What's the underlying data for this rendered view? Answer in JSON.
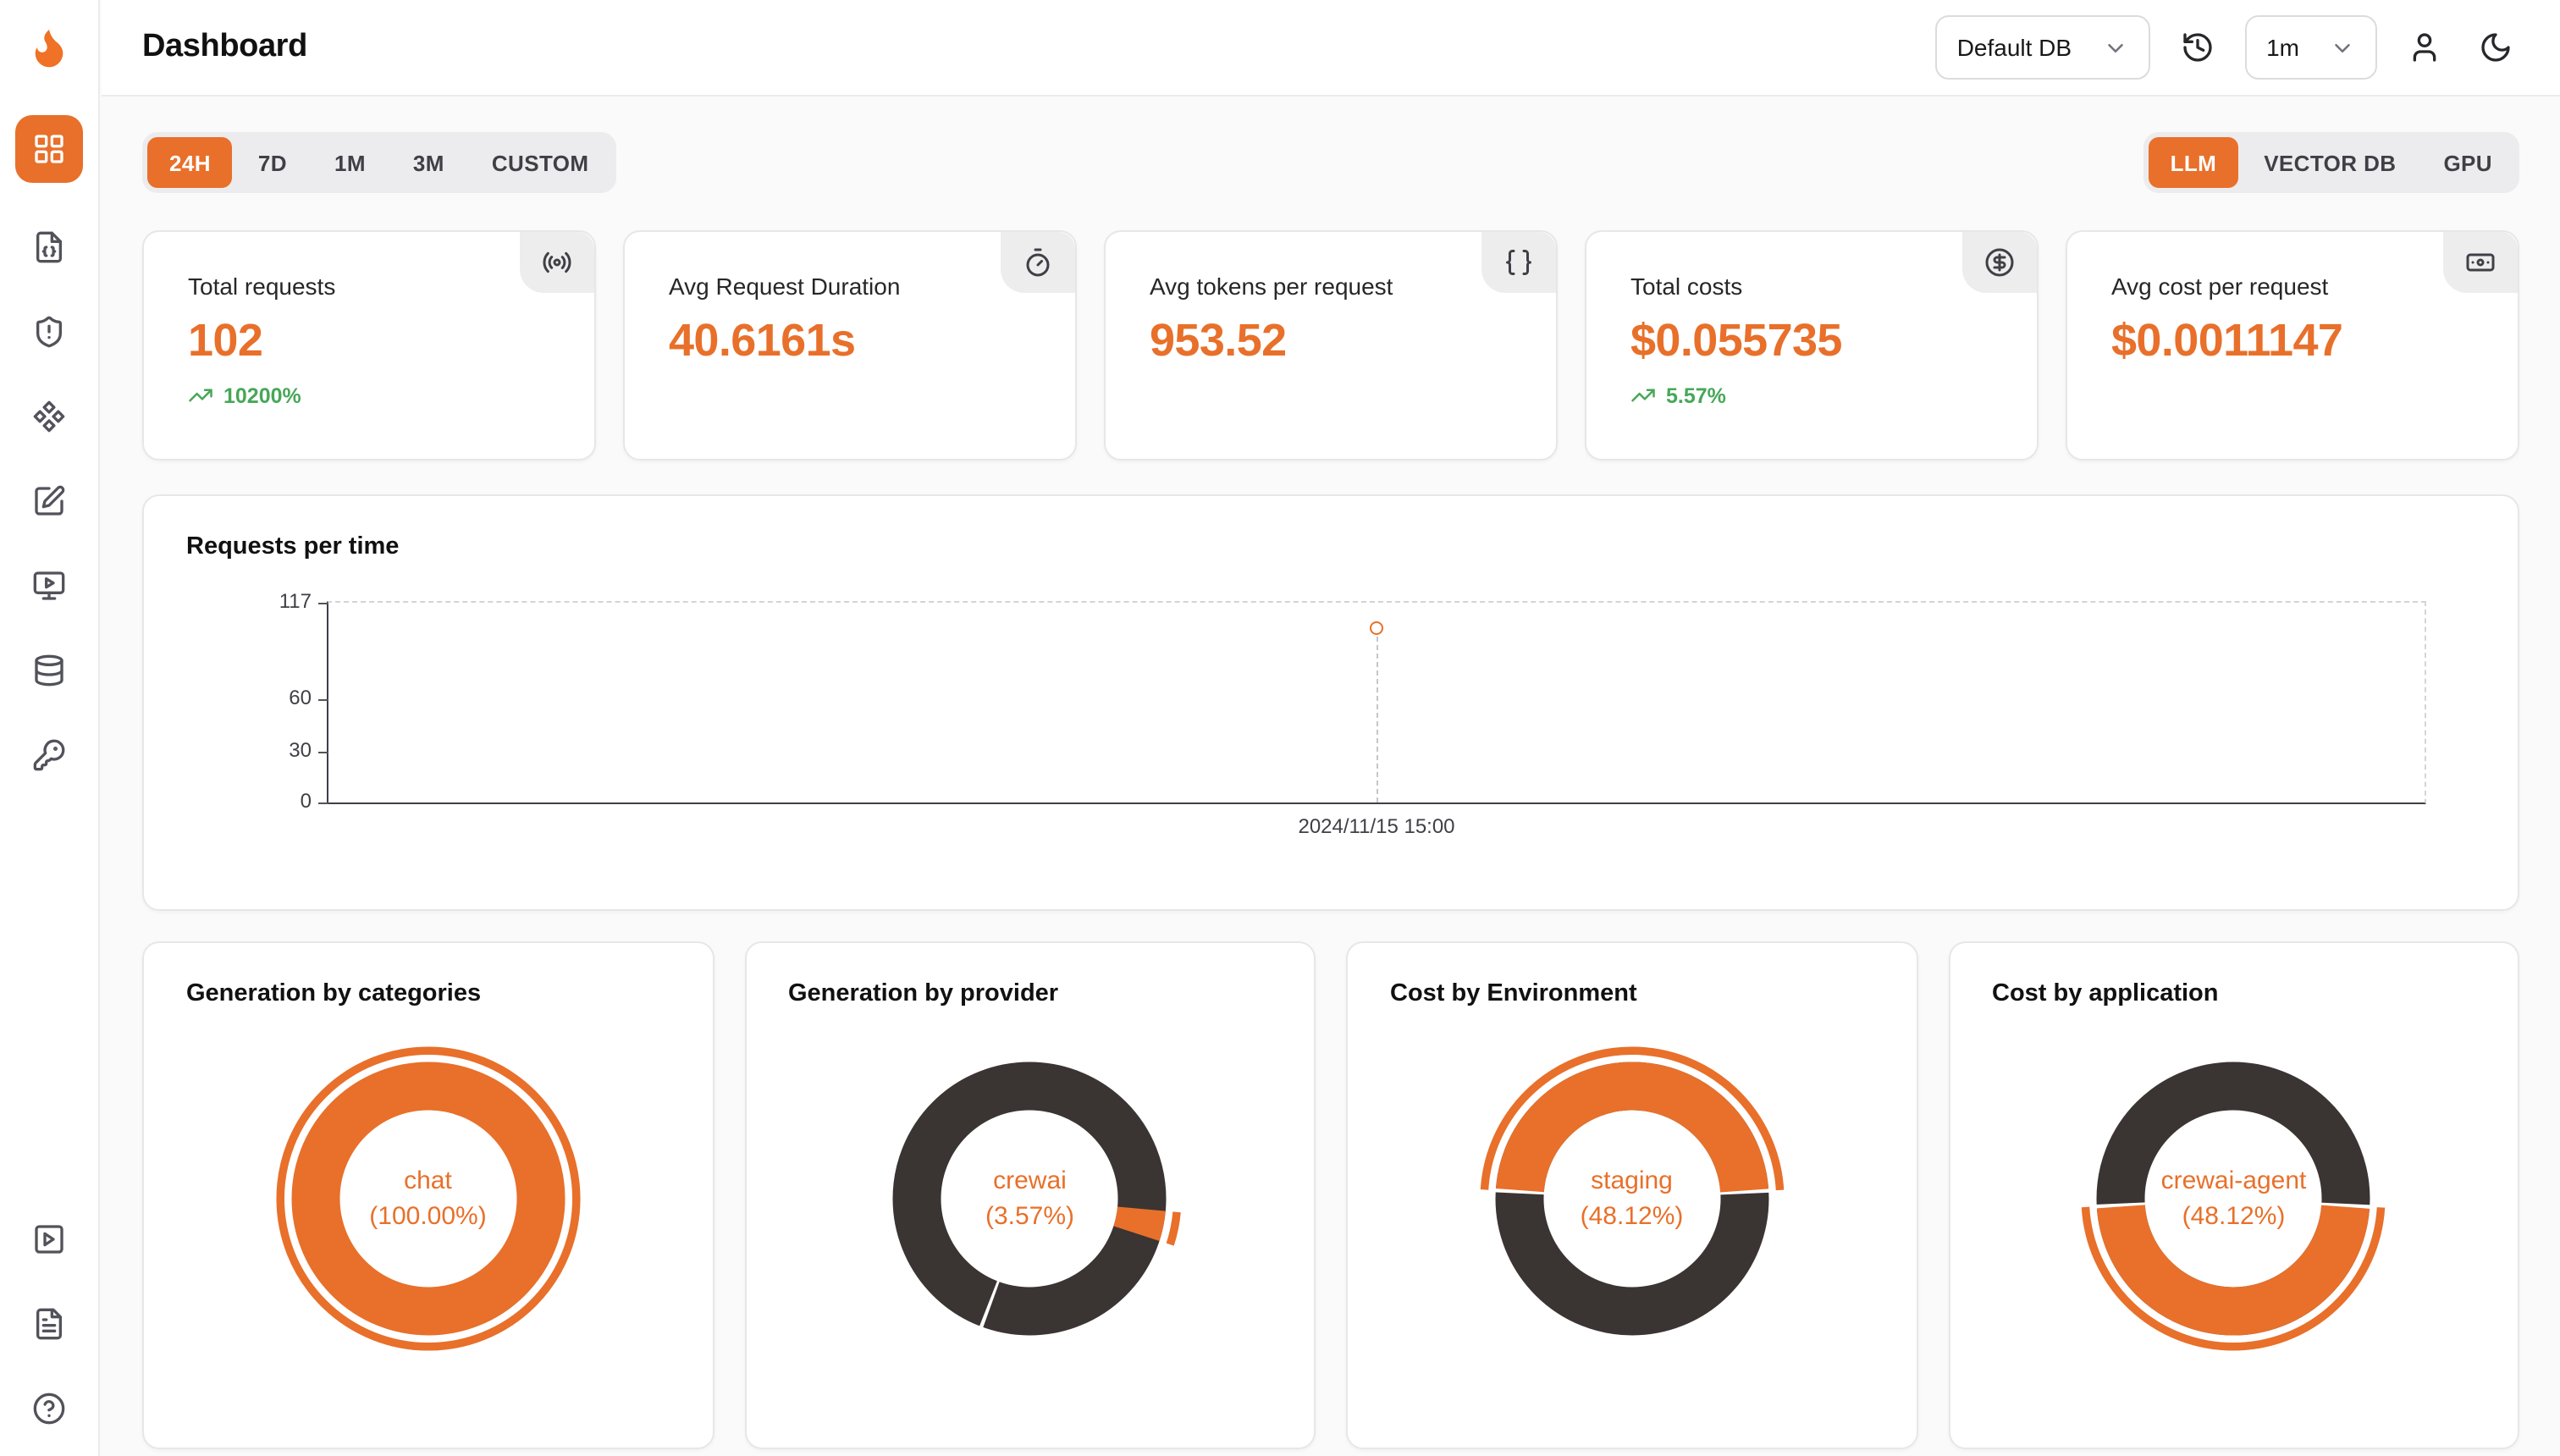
{
  "colors": {
    "accent": "#e8702a",
    "dark": "#3a3432",
    "green": "#47a758"
  },
  "header": {
    "title": "Dashboard",
    "db_select": {
      "value": "Default DB"
    },
    "interval_select": {
      "value": "1m"
    },
    "icons": [
      "history-icon",
      "user-icon",
      "moon-icon"
    ]
  },
  "sidebar": {
    "items": [
      {
        "icon": "dashboard-grid-icon",
        "active": true
      },
      {
        "icon": "file-json-icon"
      },
      {
        "icon": "shield-alert-icon"
      },
      {
        "icon": "nodes-icon"
      },
      {
        "icon": "form-edit-icon"
      },
      {
        "icon": "monitor-play-icon"
      },
      {
        "icon": "database-icon"
      },
      {
        "icon": "key-icon"
      }
    ],
    "bottom_items": [
      {
        "icon": "play-square-icon"
      },
      {
        "icon": "docs-icon"
      },
      {
        "icon": "help-icon"
      }
    ]
  },
  "time_tabs": {
    "items": [
      "24H",
      "7D",
      "1M",
      "3M",
      "CUSTOM"
    ],
    "active": "24H"
  },
  "source_tabs": {
    "items": [
      "LLM",
      "VECTOR DB",
      "GPU"
    ],
    "active": "LLM"
  },
  "stats": [
    {
      "label": "Total requests",
      "value": "102",
      "delta": "10200%",
      "icon": "radio-icon"
    },
    {
      "label": "Avg Request Duration",
      "value": "40.6161s",
      "icon": "timer-icon"
    },
    {
      "label": "Avg tokens per request",
      "value": "953.52",
      "icon": "braces-icon"
    },
    {
      "label": "Total costs",
      "value": "$0.055735",
      "delta": "5.57%",
      "icon": "dollar-icon"
    },
    {
      "label": "Avg cost per request",
      "value": "$0.0011147",
      "icon": "card-icon"
    }
  ],
  "chart_data": [
    {
      "type": "line",
      "title": "Requests per time",
      "x": [
        "2024/11/15 15:00"
      ],
      "series": [
        {
          "name": "requests",
          "values": [
            102
          ]
        }
      ],
      "ylim": [
        0,
        117
      ],
      "yticks": [
        0,
        30,
        60,
        117
      ],
      "point_x_frac": 0.5,
      "grid": "dashed-border",
      "legend": "none"
    },
    {
      "type": "pie",
      "title": "Generation by categories",
      "slices": [
        {
          "label": "chat",
          "pct": 100.0
        }
      ],
      "center_label": "chat",
      "center_pct": "(100.00%)",
      "base": "accent",
      "arc": null,
      "dividers": [],
      "outer": {
        "from": 0,
        "to": 1
      }
    },
    {
      "type": "pie",
      "title": "Generation by provider",
      "slices": [
        {
          "label": "crewai",
          "pct": 3.57
        },
        {
          "label": "other",
          "pct": 96.43
        }
      ],
      "center_label": "crewai",
      "center_pct": "(3.57%)",
      "base": "dark",
      "arc": {
        "from": 0.2643,
        "to": 0.3
      },
      "dividers": [
        0.557
      ],
      "outer": {
        "from": 0.2643,
        "to": 0.3
      }
    },
    {
      "type": "pie",
      "title": "Cost by Environment",
      "slices": [
        {
          "label": "staging",
          "pct": 48.12
        },
        {
          "label": "other",
          "pct": 51.88
        }
      ],
      "center_label": "staging",
      "center_pct": "(48.12%)",
      "base": "dark",
      "arc": {
        "from": -0.2406,
        "to": 0.2406
      },
      "dividers": [
        0.2406,
        0.7594
      ],
      "outer": {
        "from": -0.2406,
        "to": 0.2406
      }
    },
    {
      "type": "pie",
      "title": "Cost by application",
      "slices": [
        {
          "label": "crewai-agent",
          "pct": 48.12
        },
        {
          "label": "other",
          "pct": 51.88
        }
      ],
      "center_label": "crewai-agent",
      "center_pct": "(48.12%)",
      "base": "dark",
      "arc": {
        "from": 0.2594,
        "to": 0.7406
      },
      "dividers": [
        0.2594,
        0.7406
      ],
      "outer": {
        "from": 0.2594,
        "to": 0.7406
      }
    }
  ]
}
